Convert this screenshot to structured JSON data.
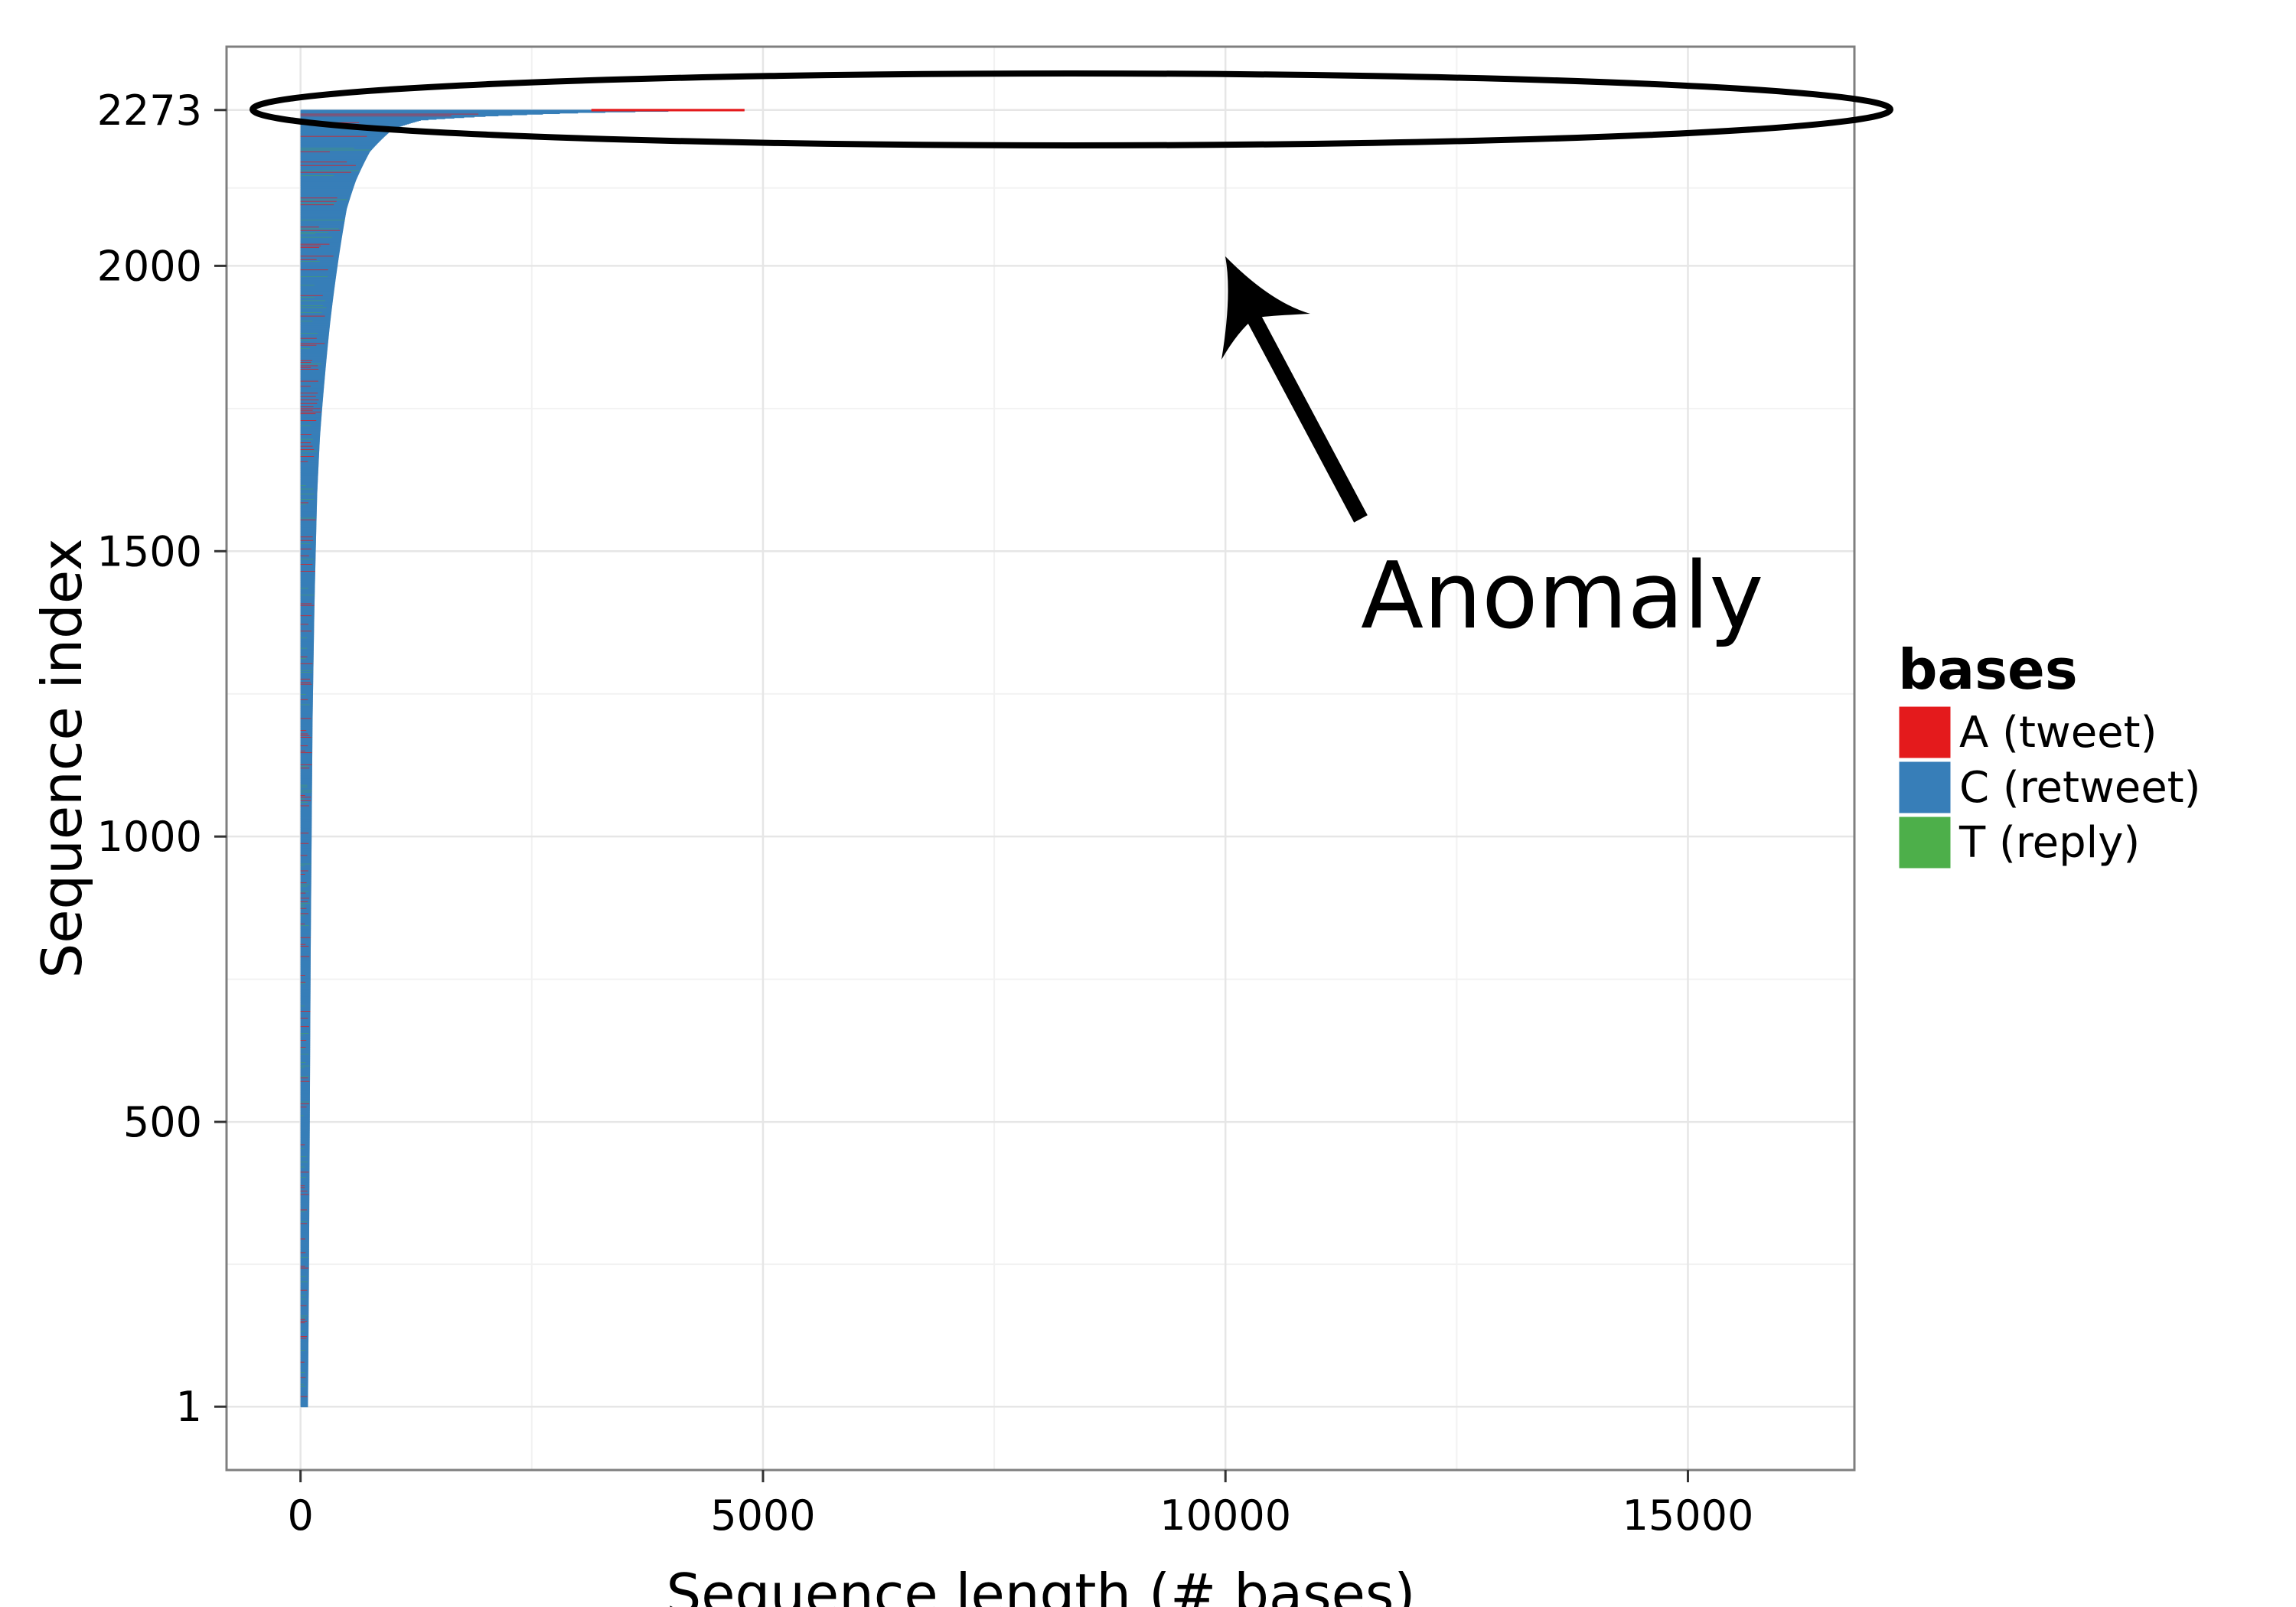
{
  "chart_data": {
    "type": "bar",
    "orientation": "horizontal",
    "stacked": true,
    "xlabel": "Sequence length (# bases)",
    "ylabel": "Sequence index",
    "x_ticks": [
      0,
      5000,
      10000,
      15000
    ],
    "y_ticks": [
      1,
      500,
      1000,
      1500,
      2000,
      2273
    ],
    "xlim": [
      -800,
      16800
    ],
    "ylim": [
      -110,
      2384
    ],
    "grid": true,
    "legend": {
      "title": "bases",
      "placement": "right",
      "entries": [
        {
          "label": "A (tweet)",
          "color": "#e41a1c"
        },
        {
          "label": "C (retweet)",
          "color": "#377eb8"
        },
        {
          "label": "T (reply)",
          "color": "#4daf4a"
        }
      ]
    },
    "profile": {
      "description_points": [
        [
          1,
          80
        ],
        [
          200,
          90
        ],
        [
          500,
          100
        ],
        [
          800,
          110
        ],
        [
          1000,
          120
        ],
        [
          1200,
          130
        ],
        [
          1400,
          150
        ],
        [
          1600,
          180
        ],
        [
          1700,
          210
        ],
        [
          1800,
          260
        ],
        [
          1900,
          320
        ],
        [
          2000,
          400
        ],
        [
          2100,
          500
        ],
        [
          2150,
          600
        ],
        [
          2200,
          750
        ],
        [
          2240,
          1000
        ],
        [
          2255,
          1300
        ],
        [
          2262,
          2000
        ],
        [
          2268,
          3000
        ],
        [
          2273,
          4800
        ]
      ],
      "composition": {
        "A (tweet)": 0.05,
        "C (retweet)": 0.9,
        "T (reply)": 0.05
      }
    },
    "annotations": [
      {
        "text": "Anomaly",
        "target_x": 10000,
        "target_y": 2000,
        "highlight_y": 2273
      }
    ]
  }
}
